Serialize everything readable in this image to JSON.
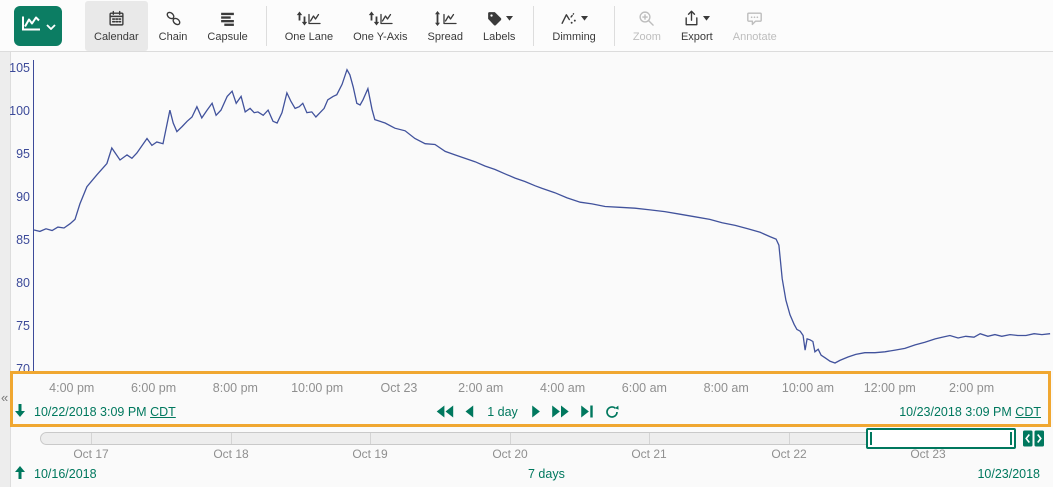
{
  "colors": {
    "accent": "#00785e",
    "brand_button": "#0c7d63",
    "signal_line": "#41529c",
    "axis_blue": "#3c4a99",
    "highlight_orange": "#f0a731",
    "tick_gray": "#8f8f8f"
  },
  "toolbar": {
    "view_button": {
      "icon": "trend-view-icon",
      "has_caret": true
    },
    "items": [
      {
        "id": "calendar",
        "label": "Calendar",
        "icon": "calendar-icon",
        "enabled": true,
        "selected": true,
        "caret": false,
        "group": 0
      },
      {
        "id": "chain",
        "label": "Chain",
        "icon": "chain-icon",
        "enabled": true,
        "selected": false,
        "caret": false,
        "group": 0
      },
      {
        "id": "capsule",
        "label": "Capsule",
        "icon": "capsule-icon",
        "enabled": true,
        "selected": false,
        "caret": false,
        "group": 0
      },
      {
        "id": "one-lane",
        "label": "One Lane",
        "icon": "one-lane-icon",
        "enabled": true,
        "selected": false,
        "caret": false,
        "group": 1
      },
      {
        "id": "one-y-axis",
        "label": "One Y-Axis",
        "icon": "one-y-axis-icon",
        "enabled": true,
        "selected": false,
        "caret": false,
        "group": 1
      },
      {
        "id": "spread",
        "label": "Spread",
        "icon": "spread-icon",
        "enabled": true,
        "selected": false,
        "caret": false,
        "group": 1
      },
      {
        "id": "labels",
        "label": "Labels",
        "icon": "labels-icon",
        "enabled": true,
        "selected": false,
        "caret": true,
        "group": 1
      },
      {
        "id": "dimming",
        "label": "Dimming",
        "icon": "dimming-icon",
        "enabled": true,
        "selected": false,
        "caret": true,
        "group": 2
      },
      {
        "id": "zoom",
        "label": "Zoom",
        "icon": "zoom-icon",
        "enabled": false,
        "selected": false,
        "caret": false,
        "group": 3
      },
      {
        "id": "export",
        "label": "Export",
        "icon": "export-icon",
        "enabled": true,
        "selected": false,
        "caret": true,
        "group": 3
      },
      {
        "id": "annotate",
        "label": "Annotate",
        "icon": "annotate-icon",
        "enabled": false,
        "selected": false,
        "caret": false,
        "group": 3
      }
    ]
  },
  "chart_data": {
    "type": "line",
    "title": "",
    "grid": false,
    "legend": false,
    "x_axis": {
      "unit": "hours from display range start (10/22/2018 3:09 PM CDT)",
      "start": "10/22/2018 3:09 PM CDT",
      "end": "10/23/2018 3:09 PM CDT",
      "tick_labels": [
        "4:00 pm",
        "6:00 pm",
        "8:00 pm",
        "10:00 pm",
        "Oct 23",
        "2:00 am",
        "4:00 am",
        "6:00 am",
        "8:00 am",
        "10:00 am",
        "12:00 pm",
        "2:00 pm"
      ],
      "tick_hours": [
        0.85,
        2.85,
        4.85,
        6.85,
        8.85,
        10.85,
        12.85,
        14.85,
        16.85,
        18.85,
        20.85,
        22.85
      ]
    },
    "y_axis": {
      "tick_values": [
        105,
        100,
        95,
        90,
        85,
        80,
        75,
        70
      ],
      "range": [
        69.6,
        105.9
      ]
    },
    "series": [
      {
        "name": "signal",
        "color": "#41529c",
        "points": [
          [
            -0.1,
            86.2
          ],
          [
            0.07,
            86.0
          ],
          [
            0.22,
            86.3
          ],
          [
            0.37,
            86.1
          ],
          [
            0.51,
            86.5
          ],
          [
            0.66,
            86.4
          ],
          [
            0.81,
            86.9
          ],
          [
            0.93,
            87.4
          ],
          [
            1.05,
            89.2
          ],
          [
            1.22,
            91.2
          ],
          [
            1.47,
            92.6
          ],
          [
            1.71,
            93.9
          ],
          [
            1.83,
            95.7
          ],
          [
            2.03,
            94.3
          ],
          [
            2.2,
            94.9
          ],
          [
            2.32,
            94.5
          ],
          [
            2.44,
            95.1
          ],
          [
            2.69,
            96.8
          ],
          [
            2.81,
            96.0
          ],
          [
            2.93,
            96.4
          ],
          [
            3.08,
            96.2
          ],
          [
            3.25,
            100.1
          ],
          [
            3.33,
            98.6
          ],
          [
            3.42,
            97.6
          ],
          [
            3.55,
            98.2
          ],
          [
            3.67,
            98.8
          ],
          [
            3.79,
            99.3
          ],
          [
            3.91,
            100.5
          ],
          [
            4.03,
            99.2
          ],
          [
            4.16,
            100.1
          ],
          [
            4.28,
            100.9
          ],
          [
            4.38,
            99.5
          ],
          [
            4.5,
            100.1
          ],
          [
            4.65,
            101.7
          ],
          [
            4.77,
            102.3
          ],
          [
            4.87,
            100.9
          ],
          [
            4.99,
            101.7
          ],
          [
            5.09,
            99.9
          ],
          [
            5.21,
            100.3
          ],
          [
            5.31,
            99.8
          ],
          [
            5.4,
            99.9
          ],
          [
            5.53,
            99.5
          ],
          [
            5.65,
            100.1
          ],
          [
            5.77,
            98.8
          ],
          [
            5.87,
            98.6
          ],
          [
            5.99,
            99.8
          ],
          [
            6.11,
            102.1
          ],
          [
            6.21,
            101.1
          ],
          [
            6.31,
            100.3
          ],
          [
            6.41,
            100.5
          ],
          [
            6.5,
            100.9
          ],
          [
            6.6,
            99.8
          ],
          [
            6.72,
            99.9
          ],
          [
            6.82,
            99.3
          ],
          [
            6.92,
            99.8
          ],
          [
            7.02,
            100.3
          ],
          [
            7.11,
            101.3
          ],
          [
            7.24,
            101.7
          ],
          [
            7.33,
            101.9
          ],
          [
            7.46,
            103.1
          ],
          [
            7.58,
            104.8
          ],
          [
            7.65,
            104.2
          ],
          [
            7.73,
            102.8
          ],
          [
            7.82,
            100.9
          ],
          [
            7.9,
            100.7
          ],
          [
            7.97,
            101.3
          ],
          [
            8.09,
            102.6
          ],
          [
            8.19,
            100.2
          ],
          [
            8.26,
            99.0
          ],
          [
            8.51,
            98.6
          ],
          [
            8.75,
            98.0
          ],
          [
            9.0,
            97.7
          ],
          [
            9.24,
            96.8
          ],
          [
            9.49,
            96.2
          ],
          [
            9.73,
            96.1
          ],
          [
            9.98,
            95.3
          ],
          [
            10.22,
            94.9
          ],
          [
            10.46,
            94.5
          ],
          [
            10.71,
            94.1
          ],
          [
            10.95,
            93.6
          ],
          [
            11.2,
            93.2
          ],
          [
            11.44,
            92.7
          ],
          [
            11.69,
            92.2
          ],
          [
            11.93,
            91.8
          ],
          [
            12.18,
            91.3
          ],
          [
            12.35,
            91.0
          ],
          [
            12.66,
            90.5
          ],
          [
            12.96,
            89.9
          ],
          [
            13.28,
            89.4
          ],
          [
            13.57,
            89.2
          ],
          [
            13.89,
            88.9
          ],
          [
            14.25,
            88.8
          ],
          [
            14.62,
            88.7
          ],
          [
            14.99,
            88.5
          ],
          [
            15.35,
            88.3
          ],
          [
            15.72,
            88.0
          ],
          [
            16.09,
            87.7
          ],
          [
            16.45,
            87.4
          ],
          [
            16.75,
            87.0
          ],
          [
            17.07,
            86.7
          ],
          [
            17.38,
            86.3
          ],
          [
            17.68,
            85.9
          ],
          [
            17.92,
            85.4
          ],
          [
            18.07,
            85.1
          ],
          [
            18.14,
            84.4
          ],
          [
            18.22,
            80.5
          ],
          [
            18.31,
            78.0
          ],
          [
            18.41,
            76.3
          ],
          [
            18.51,
            75.2
          ],
          [
            18.58,
            74.6
          ],
          [
            18.66,
            74.4
          ],
          [
            18.73,
            73.9
          ],
          [
            18.78,
            72.2
          ],
          [
            18.83,
            73.5
          ],
          [
            18.9,
            73.4
          ],
          [
            18.97,
            73.2
          ],
          [
            19.02,
            72.0
          ],
          [
            19.1,
            72.3
          ],
          [
            19.17,
            71.6
          ],
          [
            19.27,
            71.3
          ],
          [
            19.39,
            70.9
          ],
          [
            19.51,
            70.7
          ],
          [
            19.63,
            71.0
          ],
          [
            19.83,
            71.4
          ],
          [
            20.02,
            71.7
          ],
          [
            20.24,
            71.9
          ],
          [
            20.49,
            71.9
          ],
          [
            20.73,
            72.0
          ],
          [
            20.98,
            72.2
          ],
          [
            21.22,
            72.4
          ],
          [
            21.47,
            72.8
          ],
          [
            21.71,
            73.1
          ],
          [
            21.96,
            73.5
          ],
          [
            22.13,
            73.7
          ],
          [
            22.32,
            73.9
          ],
          [
            22.52,
            73.6
          ],
          [
            22.71,
            73.8
          ],
          [
            22.91,
            73.7
          ],
          [
            23.06,
            74.1
          ],
          [
            23.25,
            73.8
          ],
          [
            23.42,
            74.0
          ],
          [
            23.59,
            73.8
          ],
          [
            23.79,
            74.0
          ],
          [
            23.98,
            73.9
          ],
          [
            24.18,
            73.9
          ],
          [
            24.38,
            74.1
          ],
          [
            24.57,
            74.0
          ],
          [
            24.77,
            74.1
          ]
        ]
      }
    ]
  },
  "range_navigation": {
    "start": "10/22/2018 3:09 PM",
    "start_tz": "CDT",
    "end": "10/23/2018 3:09 PM",
    "end_tz": "CDT",
    "step_label": "1 day",
    "controls": [
      "step-back-double",
      "step-back",
      "step-forward",
      "step-forward-double",
      "step-to-now",
      "auto-update"
    ]
  },
  "timeline": {
    "day_labels": [
      "Oct 17",
      "Oct 18",
      "Oct 19",
      "Oct 20",
      "Oct 21",
      "Oct 22",
      "Oct 23"
    ],
    "investigate_start": "10/16/2018",
    "investigate_end": "10/23/2018",
    "duration_label": "7 days"
  },
  "collapse": {
    "chevron": "«"
  }
}
